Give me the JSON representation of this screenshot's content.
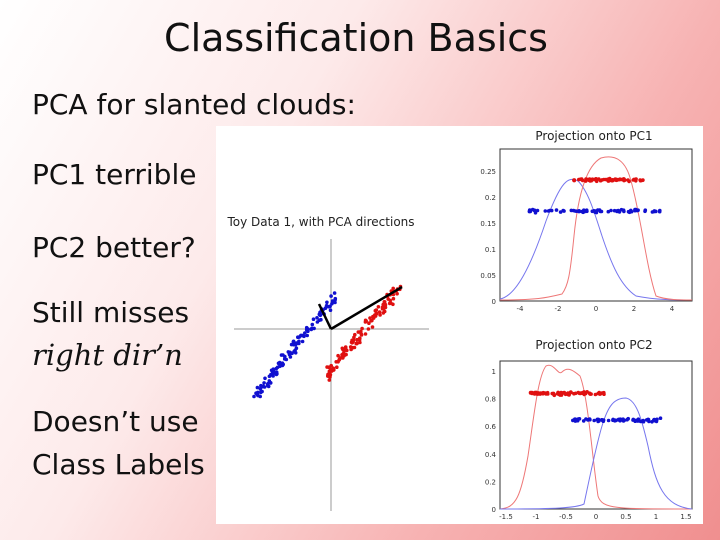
{
  "slide": {
    "title": "Classification Basics",
    "bullets": [
      {
        "text": "PCA for slanted clouds:",
        "style": "normal"
      },
      {
        "text": "PC1 terrible",
        "style": "normal"
      },
      {
        "text": "PC2 better?",
        "style": "normal"
      },
      {
        "text": "Still misses",
        "style": "normal"
      },
      {
        "text": "right dir’n",
        "style": "italic"
      },
      {
        "text": "Doesn’t use",
        "style": "normal"
      },
      {
        "text": "Class Labels",
        "style": "normal"
      }
    ]
  },
  "chart_data": [
    {
      "type": "scatter",
      "title": "Toy Data 1, with PCA directions",
      "series": [
        {
          "name": "",
          "color": "#1010d0"
        },
        {
          "name": "",
          "color": "#e01010"
        }
      ],
      "axes_crosshair": true,
      "pca_directions": 2
    },
    {
      "type": "scatter",
      "title": "Projection onto PC1",
      "xlim": [
        -5,
        5
      ],
      "ylim": [
        0,
        0.27
      ],
      "xticks": [
        "-4",
        "-2",
        "0",
        "2",
        "4"
      ],
      "yticks": [
        "0",
        "0.05",
        "0.1",
        "0.15",
        "0.2",
        "0.25"
      ],
      "series": [
        {
          "name": "",
          "color": "#1010d0",
          "jitter_y": 0.16,
          "x_range": [
            -3.5,
            3.4
          ]
        },
        {
          "name": "",
          "color": "#e01010",
          "jitter_y": 0.215,
          "x_range": [
            -1.2,
            2.5
          ]
        }
      ]
    },
    {
      "type": "scatter",
      "title": "Projection onto PC2",
      "xlim": [
        -1.6,
        1.6
      ],
      "ylim": [
        0,
        1.05
      ],
      "xticks": [
        "-1.5",
        "-1",
        "-0.5",
        "0",
        "0.5",
        "1",
        "1.5"
      ],
      "yticks": [
        "0",
        "0.2",
        "0.4",
        "0.6",
        "0.8",
        "1"
      ],
      "series": [
        {
          "name": "",
          "color": "#e01010",
          "jitter_y": 0.82,
          "x_range": [
            -1.1,
            0.2
          ]
        },
        {
          "name": "",
          "color": "#1010d0",
          "jitter_y": 0.63,
          "x_range": [
            -0.4,
            1.1
          ]
        }
      ]
    }
  ]
}
